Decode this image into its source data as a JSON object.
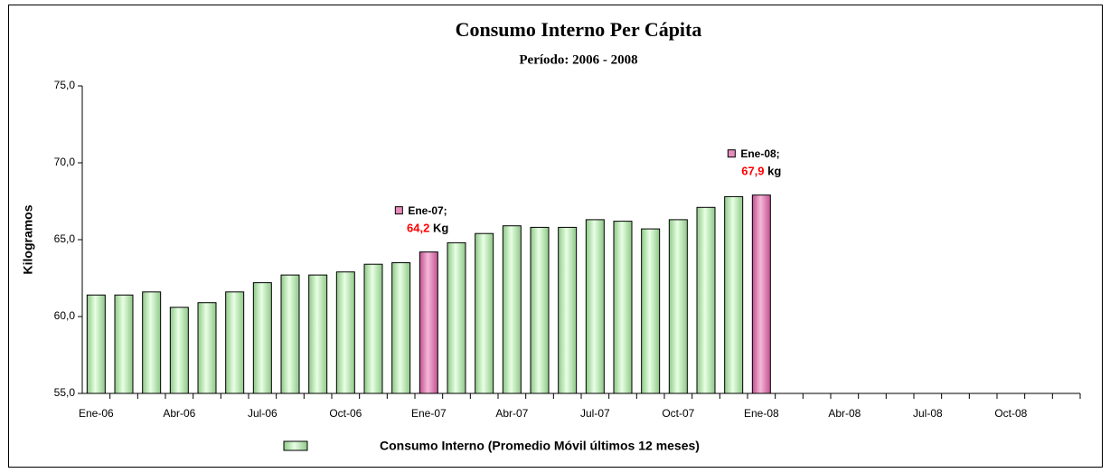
{
  "chart_data": {
    "type": "bar",
    "title": "Consumo Interno Per Cápita",
    "subtitle": "Período: 2006 - 2008",
    "y_label": "Kilogramos",
    "categories": [
      "Ene-06",
      null,
      null,
      "Abr-06",
      null,
      null,
      "Jul-06",
      null,
      null,
      "Oct-06",
      null,
      null,
      "Ene-07",
      null,
      null,
      "Abr-07",
      null,
      null,
      "Jul-07",
      null,
      null,
      "Oct-07",
      null,
      null,
      "Ene-08",
      null,
      null,
      "Abr-08",
      null,
      null,
      "Jul-08",
      null,
      null,
      "Oct-08",
      null,
      null
    ],
    "series": [
      {
        "name": "Consumo Interno (Promedio Móvil últimos 12 meses)",
        "color": "#c8f0c0",
        "highlight_color": "#e68cbc",
        "values": [
          61.4,
          61.4,
          61.6,
          60.6,
          60.9,
          61.6,
          62.2,
          62.7,
          62.7,
          62.9,
          63.4,
          63.5,
          64.2,
          64.8,
          65.4,
          65.9,
          65.8,
          65.8,
          66.3,
          66.2,
          65.7,
          66.3,
          67.1,
          67.8,
          67.9,
          null,
          null,
          null,
          null,
          null,
          null,
          null,
          null,
          null,
          null,
          null
        ],
        "value_labels": [
          null,
          null,
          null,
          null,
          null,
          null,
          null,
          null,
          null,
          null,
          null,
          null,
          "64,2",
          null,
          null,
          null,
          null,
          null,
          null,
          null,
          null,
          null,
          null,
          null,
          "67,9",
          null,
          null,
          null,
          null,
          null,
          null,
          null,
          null,
          null,
          null,
          null
        ],
        "label_prefixes": [
          null,
          null,
          null,
          null,
          null,
          null,
          null,
          null,
          null,
          null,
          null,
          null,
          "Ene-07;",
          null,
          null,
          null,
          null,
          null,
          null,
          null,
          null,
          null,
          null,
          null,
          "Ene-08;",
          null,
          null,
          null,
          null,
          null,
          null,
          null,
          null,
          null,
          null,
          null
        ],
        "label_units": [
          null,
          null,
          null,
          null,
          null,
          null,
          null,
          null,
          null,
          null,
          null,
          null,
          "Kg",
          null,
          null,
          null,
          null,
          null,
          null,
          null,
          null,
          null,
          null,
          null,
          "kg",
          null,
          null,
          null,
          null,
          null,
          null,
          null,
          null,
          null,
          null,
          null
        ]
      }
    ],
    "ylim": [
      55,
      75
    ],
    "yticks": [
      {
        "value": 55,
        "label": "55,0"
      },
      {
        "value": 60,
        "label": "60,0"
      },
      {
        "value": 65,
        "label": "65,0"
      },
      {
        "value": 70,
        "label": "70,0"
      },
      {
        "value": 75,
        "label": "75,0"
      }
    ],
    "legend": "bottom",
    "grid": false
  }
}
